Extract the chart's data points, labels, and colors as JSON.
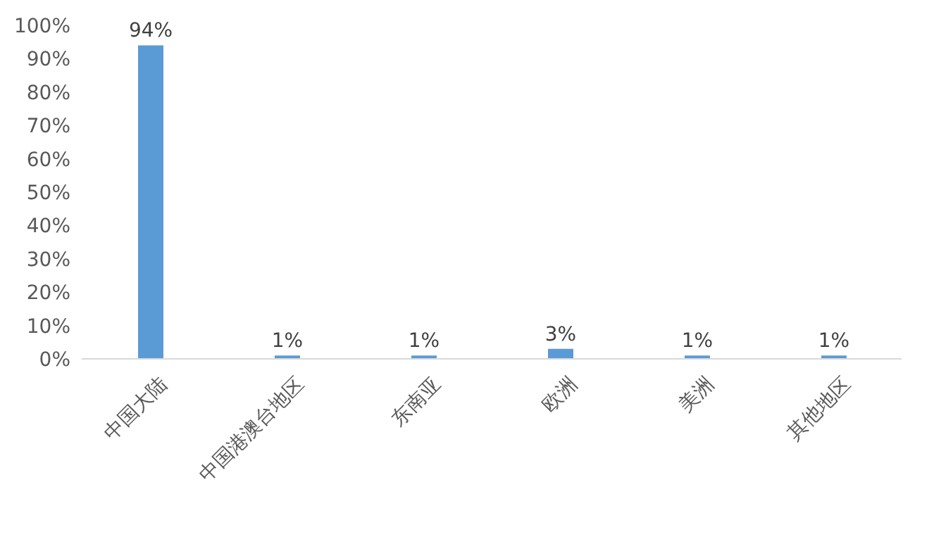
{
  "chart_data": {
    "type": "bar",
    "categories": [
      "中国大陆",
      "中国港澳台地区",
      "东南亚",
      "欧洲",
      "美洲",
      "其他地区"
    ],
    "values": [
      94,
      1,
      1,
      3,
      1,
      1
    ],
    "value_labels": [
      "94%",
      "1%",
      "1%",
      "3%",
      "1%",
      "1%"
    ],
    "color": "#5b9bd5",
    "ylim": [
      0,
      100
    ],
    "yticks": [
      {
        "value": 0,
        "label": "0%"
      },
      {
        "value": 10,
        "label": "10%"
      },
      {
        "value": 20,
        "label": "20%"
      },
      {
        "value": 30,
        "label": "30%"
      },
      {
        "value": 40,
        "label": "40%"
      },
      {
        "value": 50,
        "label": "50%"
      },
      {
        "value": 60,
        "label": "60%"
      },
      {
        "value": 70,
        "label": "70%"
      },
      {
        "value": 80,
        "label": "80%"
      },
      {
        "value": 90,
        "label": "90%"
      },
      {
        "value": 100,
        "label": "100%"
      }
    ],
    "grid": false,
    "legend": false
  }
}
